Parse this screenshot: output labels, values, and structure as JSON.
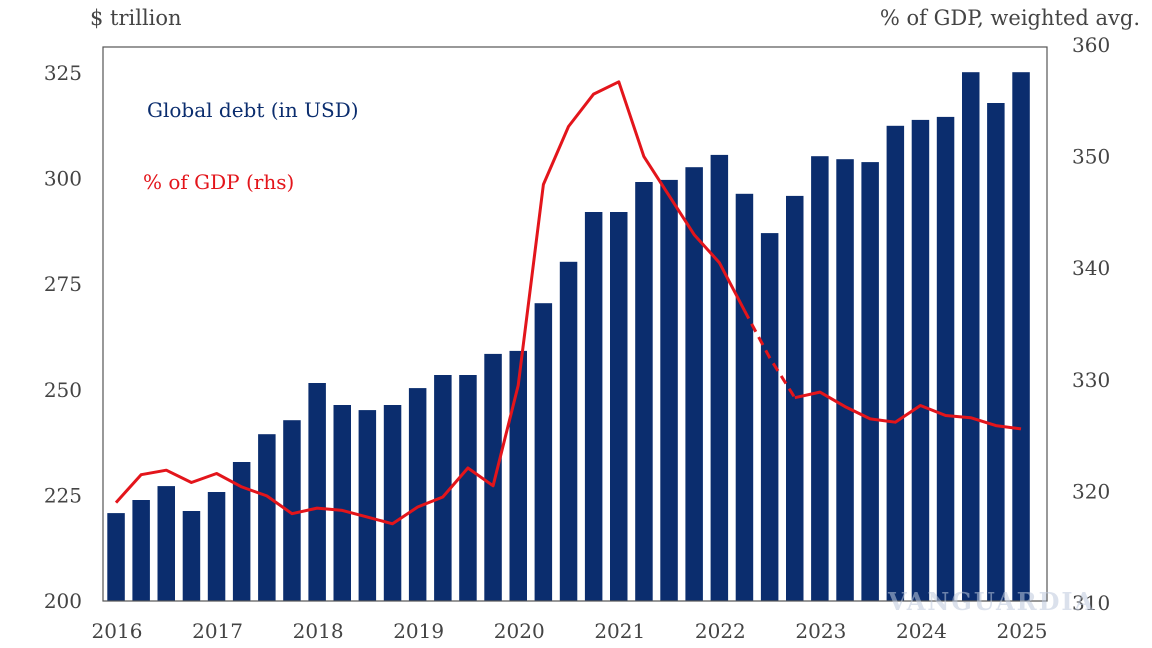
{
  "chart_data": {
    "type": "bar",
    "title": "",
    "left_axis_unit": "$ trillion",
    "right_axis_unit": "% of GDP, weighted avg.",
    "xlabel": "",
    "ylabel": "$ trillion",
    "ylabel_right": "% of GDP, weighted avg.",
    "ylim": [
      200,
      325
    ],
    "ylim_right": [
      310,
      360
    ],
    "yticks": [
      200,
      225,
      250,
      275,
      300,
      325
    ],
    "yticks_right": [
      310,
      320,
      330,
      340,
      350,
      360
    ],
    "xticks": [
      "2016",
      "2017",
      "2018",
      "2019",
      "2020",
      "2021",
      "2022",
      "2023",
      "2024",
      "2025"
    ],
    "grid": false,
    "legend_placement": "top-left (inline labels)",
    "categories": [
      "2016Q1",
      "2016Q2",
      "2016Q3",
      "2016Q4",
      "2017Q1",
      "2017Q2",
      "2017Q3",
      "2017Q4",
      "2018Q1",
      "2018Q2",
      "2018Q3",
      "2018Q4",
      "2019Q1",
      "2019Q2",
      "2019Q3",
      "2019Q4",
      "2020Q1",
      "2020Q2",
      "2020Q3",
      "2020Q4",
      "2021Q1",
      "2021Q2",
      "2021Q3",
      "2021Q4",
      "2022Q1",
      "2022Q2",
      "2022Q3",
      "2022Q4",
      "2023Q1",
      "2023Q2",
      "2023Q3",
      "2023Q4",
      "2024Q1",
      "2024Q2",
      "2024Q3",
      "2024Q4",
      "2025Q1"
    ],
    "series": [
      {
        "name": "Global debt (in USD)",
        "type": "bar",
        "axis": "left",
        "color": "#0b2d6e",
        "values": [
          220.8,
          223.9,
          227.2,
          221.3,
          225.8,
          232.9,
          239.5,
          242.8,
          251.6,
          246.4,
          245.2,
          246.4,
          250.4,
          253.5,
          253.5,
          258.5,
          259.2,
          270.5,
          280.3,
          292.1,
          292.1,
          299.2,
          299.7,
          302.7,
          305.6,
          296.4,
          287.1,
          295.9,
          305.3,
          304.6,
          303.9,
          312.5,
          313.9,
          314.6,
          325.2,
          317.9,
          325.2
        ]
      },
      {
        "name": "% of GDP (rhs)",
        "type": "line",
        "axis": "right",
        "color": "#e3151b",
        "dashed_segment": [
          "2022Q2",
          "2022Q4"
        ],
        "values": [
          319.0,
          321.5,
          321.9,
          320.8,
          321.6,
          320.4,
          319.6,
          318.0,
          318.5,
          318.3,
          317.7,
          317.1,
          318.6,
          319.5,
          322.1,
          320.5,
          329.5,
          347.5,
          352.7,
          355.6,
          356.7,
          350.0,
          346.5,
          343.0,
          340.5,
          336.2,
          332.0,
          328.4,
          328.9,
          327.6,
          326.5,
          326.2,
          327.7,
          326.8,
          326.6,
          325.9,
          325.6
        ]
      }
    ]
  },
  "labels": {
    "unit_left": "$ trillion",
    "unit_right": "% of GDP, weighted avg.",
    "legend_debt": "Global debt (in USD)",
    "legend_gdp": "% of GDP (rhs)",
    "watermark": "VANGUARDIA"
  },
  "colors": {
    "bar": "#0b2d6e",
    "line": "#e3151b",
    "axis": "#555555",
    "text": "#444444"
  }
}
